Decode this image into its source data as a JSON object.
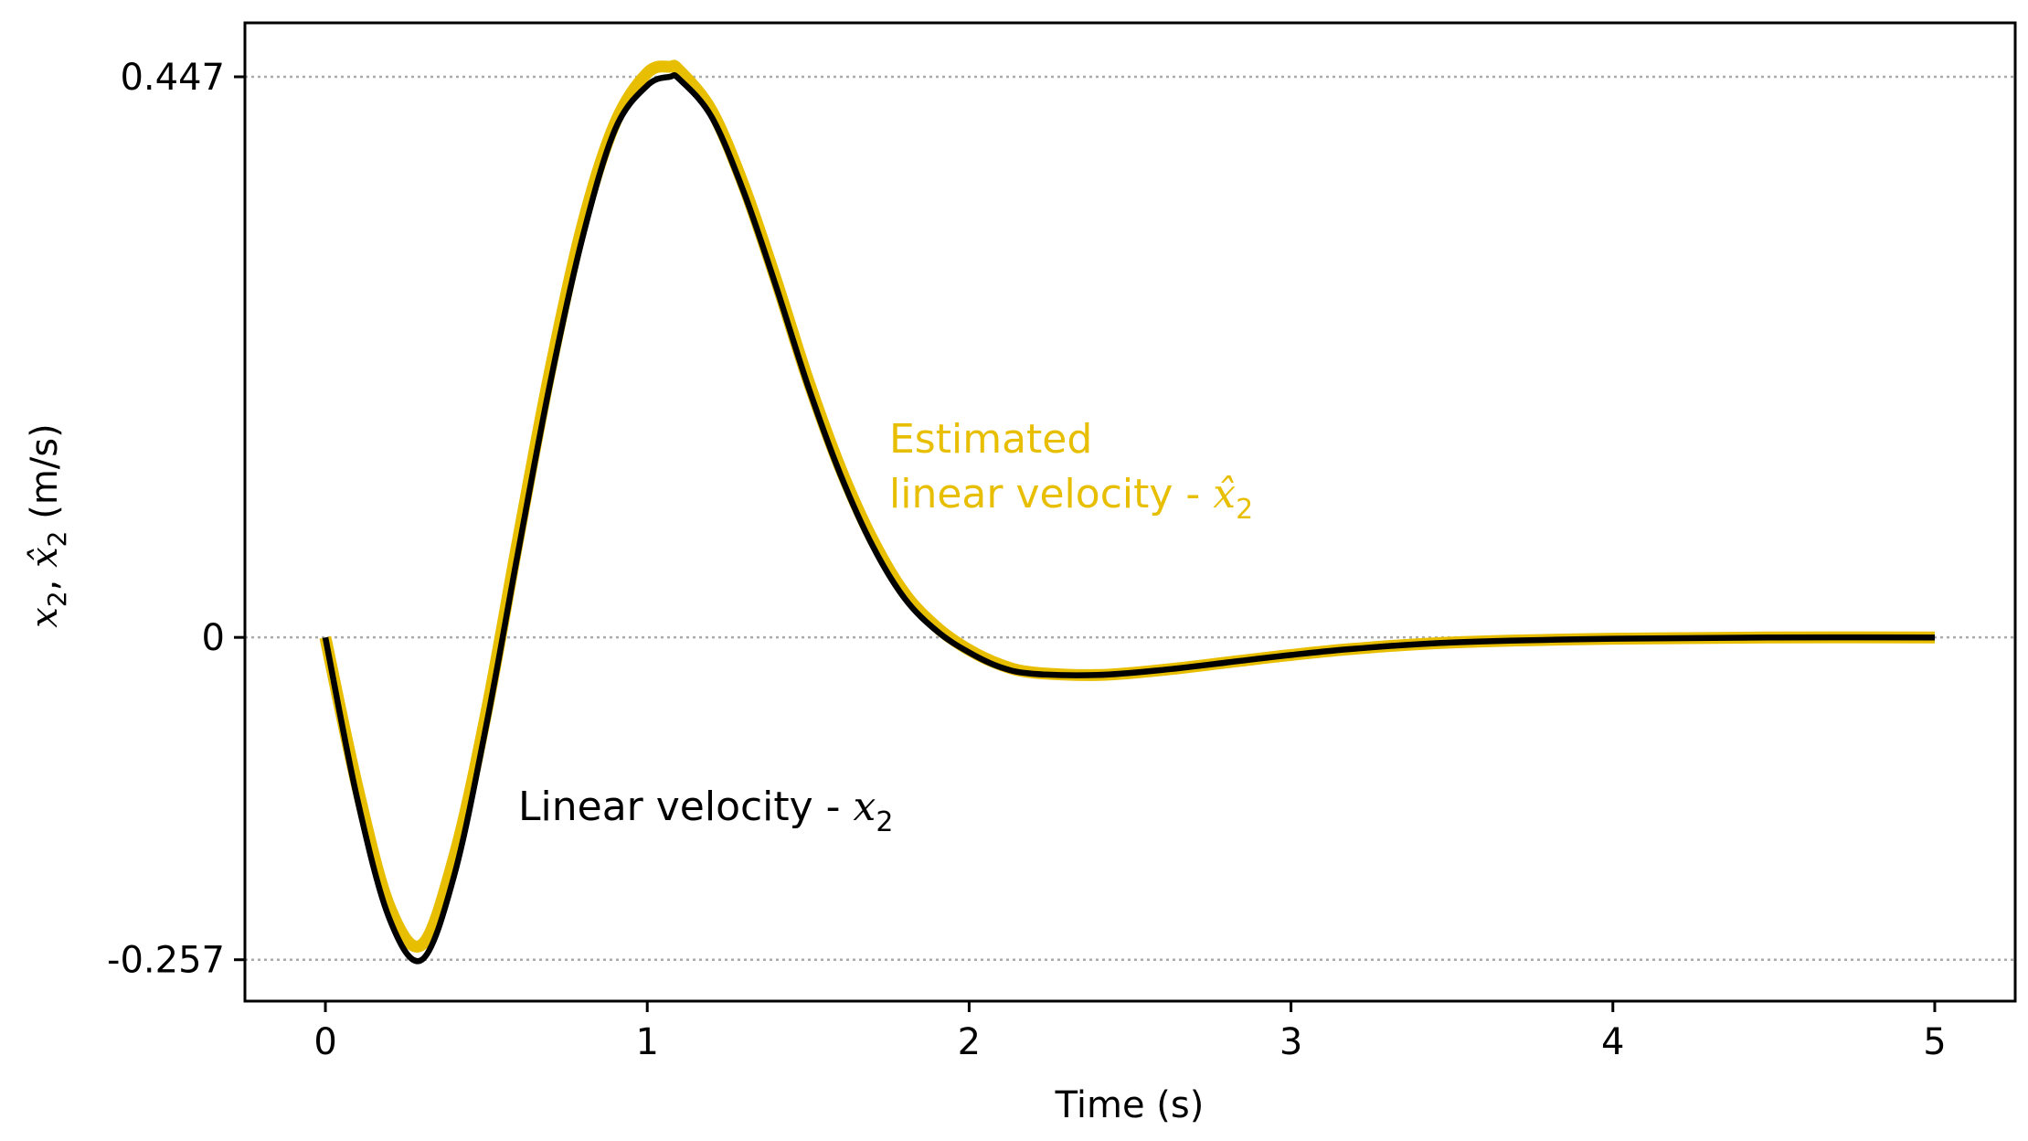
{
  "chart_data": {
    "type": "line",
    "xlabel": "Time (s)",
    "ylabel": {
      "var1": "x",
      "sub1": "2",
      "sep": ", ",
      "var2": "x̂",
      "sub2": "2",
      "unit": " (m/s)"
    },
    "xlim": [
      -0.25,
      5.25
    ],
    "ylim": [
      -0.29,
      0.49
    ],
    "x_ticks": [
      0,
      1,
      2,
      3,
      4,
      5
    ],
    "x_tick_labels": [
      "0",
      "1",
      "2",
      "3",
      "4",
      "5"
    ],
    "y_ticks": [
      -0.257,
      0,
      0.447
    ],
    "y_tick_labels": [
      "-0.257",
      "0",
      "0.447"
    ],
    "gridlines_y": [
      -0.257,
      0,
      0.447
    ],
    "series": [
      {
        "name": "Estimated linear velocity - x̂2",
        "color": "#E8BE00",
        "x": [
          0,
          0.1,
          0.2,
          0.3,
          0.4,
          0.5,
          0.6,
          0.7,
          0.8,
          0.9,
          1.0,
          1.07,
          1.1,
          1.2,
          1.3,
          1.4,
          1.5,
          1.6,
          1.7,
          1.8,
          1.9,
          2.0,
          2.1,
          2.2,
          2.4,
          2.6,
          2.8,
          3.0,
          3.2,
          3.5,
          4.0,
          4.5,
          5.0
        ],
        "values": [
          0,
          -0.12,
          -0.215,
          -0.245,
          -0.175,
          -0.06,
          0.08,
          0.215,
          0.33,
          0.41,
          0.45,
          0.455,
          0.452,
          0.42,
          0.36,
          0.285,
          0.205,
          0.135,
          0.078,
          0.035,
          0.008,
          -0.01,
          -0.022,
          -0.028,
          -0.03,
          -0.026,
          -0.02,
          -0.014,
          -0.009,
          -0.004,
          -0.001,
          0.0,
          0.0
        ]
      },
      {
        "name": "Linear velocity - x2",
        "color": "#000000",
        "x": [
          0,
          0.1,
          0.2,
          0.3,
          0.4,
          0.5,
          0.6,
          0.7,
          0.8,
          0.9,
          1.0,
          1.07,
          1.1,
          1.2,
          1.3,
          1.4,
          1.5,
          1.6,
          1.7,
          1.8,
          1.9,
          2.0,
          2.1,
          2.2,
          2.4,
          2.6,
          2.8,
          3.0,
          3.2,
          3.5,
          4.0,
          4.5,
          5.0
        ],
        "values": [
          0,
          -0.13,
          -0.225,
          -0.257,
          -0.19,
          -0.07,
          0.07,
          0.205,
          0.32,
          0.405,
          0.44,
          0.447,
          0.445,
          0.415,
          0.355,
          0.28,
          0.2,
          0.13,
          0.073,
          0.031,
          0.005,
          -0.012,
          -0.024,
          -0.029,
          -0.03,
          -0.026,
          -0.02,
          -0.014,
          -0.009,
          -0.004,
          -0.001,
          0.0,
          0.0
        ]
      }
    ],
    "annotations": [
      {
        "text_line1": "Estimated",
        "text_line2": "linear velocity - ",
        "math": "x̂",
        "sub": "2",
        "color": "#E8BE00",
        "x": 1.75,
        "y": 0.29
      },
      {
        "text_line1": "Linear velocity - ",
        "math": "x",
        "sub": "2",
        "color": "#000000",
        "x": 0.6,
        "y": -0.215
      }
    ]
  }
}
